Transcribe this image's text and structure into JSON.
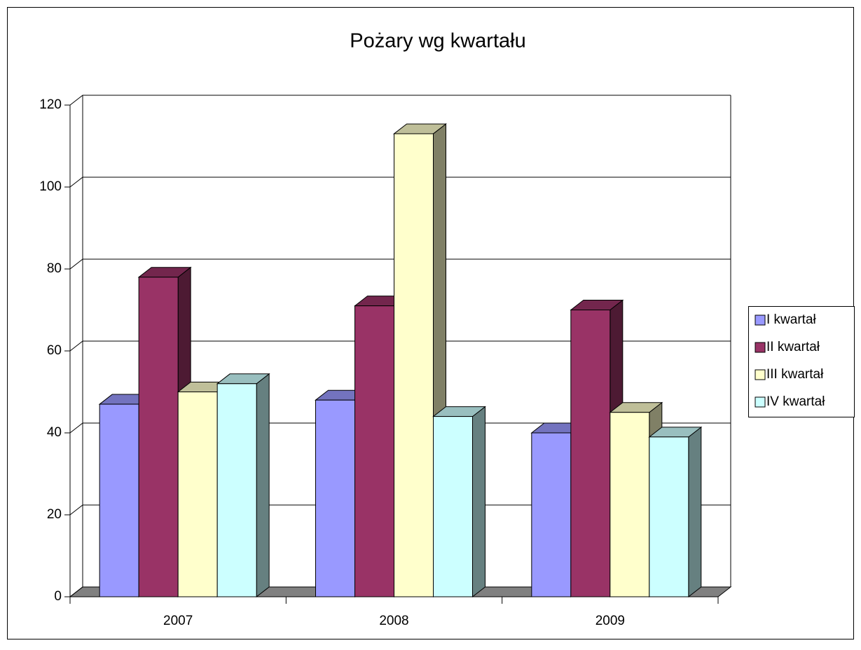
{
  "chart_data": {
    "type": "bar3d",
    "title": "Pożary wg kwartału",
    "categories": [
      "2007",
      "2008",
      "2009"
    ],
    "series": [
      {
        "name": "I kwartał",
        "color": "#9999ff",
        "values": [
          47,
          48,
          40
        ]
      },
      {
        "name": "II kwartał",
        "color": "#993366",
        "values": [
          78,
          71,
          70
        ]
      },
      {
        "name": "III kwartał",
        "color": "#ffffcc",
        "values": [
          50,
          113,
          45
        ]
      },
      {
        "name": "IV kwartał",
        "color": "#ccffff",
        "values": [
          52,
          44,
          39
        ]
      }
    ],
    "ylim": [
      0,
      120
    ],
    "yticks": [
      0,
      20,
      40,
      60,
      80,
      100,
      120
    ],
    "grid": true,
    "legend": "right"
  }
}
